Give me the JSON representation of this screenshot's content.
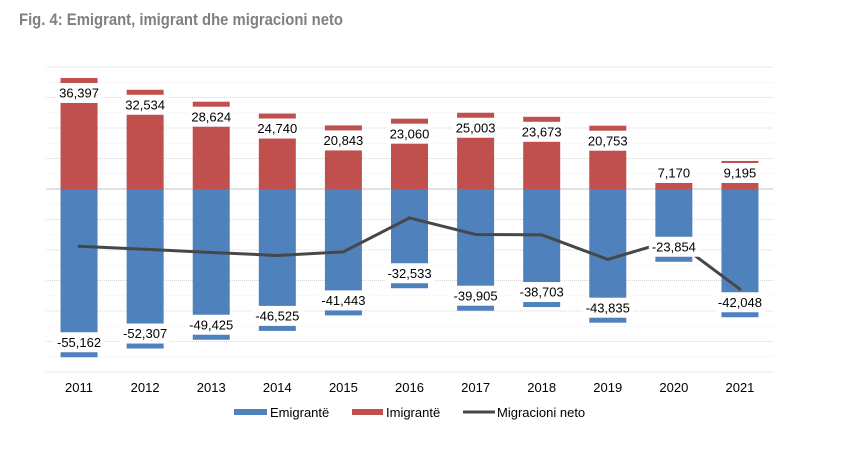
{
  "chart_data": {
    "type": "bar",
    "subtype": "stacked-bar-with-line",
    "title": "Fig. 4: Emigrant, imigrant dhe migracioni neto",
    "xlabel": "",
    "ylabel": "",
    "categories": [
      "2011",
      "2012",
      "2013",
      "2014",
      "2015",
      "2016",
      "2017",
      "2018",
      "2019",
      "2020",
      "2021"
    ],
    "series": [
      {
        "name": "Emigrantë",
        "type": "bar",
        "color": "#4F81BD",
        "values": [
          -55162,
          -52307,
          -49425,
          -46525,
          -41443,
          -32533,
          -39905,
          -38703,
          -43835,
          -23854,
          -42048
        ],
        "labels": [
          "-55,162",
          "-52,307",
          "-49,425",
          "-46,525",
          "-41,443",
          "-32,533",
          "-39,905",
          "-38,703",
          "-43,835",
          "-23,854",
          "-42,048"
        ]
      },
      {
        "name": "Imigrantë",
        "type": "bar",
        "color": "#C0504D",
        "values": [
          36397,
          32534,
          28624,
          24740,
          20843,
          23060,
          25003,
          23673,
          20753,
          7170,
          9195
        ],
        "labels": [
          "36,397",
          "32,534",
          "28,624",
          "24,740",
          "20,843",
          "23,060",
          "25,003",
          "23,673",
          "20,753",
          "7,170",
          "9,195"
        ]
      },
      {
        "name": "Migracioni neto",
        "type": "line",
        "color": "#474747",
        "values": [
          -18765,
          -19773,
          -20801,
          -21785,
          -20600,
          -9473,
          -14902,
          -15030,
          -23082,
          -16684,
          -32853
        ]
      }
    ],
    "ylim": [
      -60000,
      40000
    ],
    "y_tick_labels_visible": false,
    "grid": true,
    "grid_step": 10000,
    "legend": "bottom"
  }
}
